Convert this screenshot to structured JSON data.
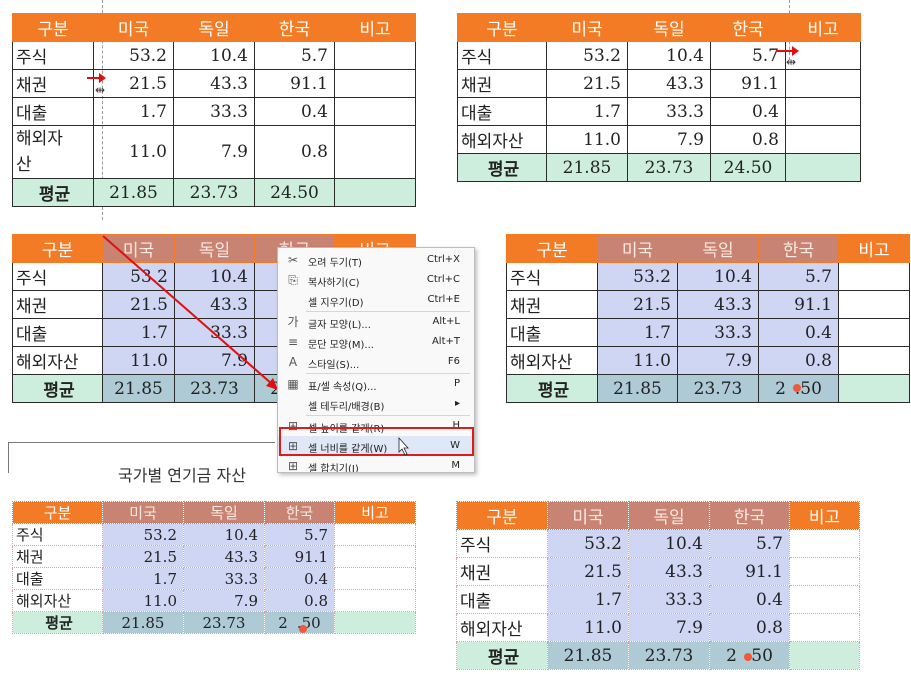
{
  "table": {
    "headers": [
      "구분",
      "미국",
      "독일",
      "한국",
      "비고"
    ],
    "rows": [
      {
        "label": "주식",
        "values": [
          "53.2",
          "10.4",
          "5.7",
          ""
        ]
      },
      {
        "label": "채권",
        "values": [
          "21.5",
          "43.3",
          "91.1",
          ""
        ]
      },
      {
        "label": "대출",
        "values": [
          "1.7",
          "33.3",
          "0.4",
          ""
        ]
      },
      {
        "label": "해외자산",
        "values": [
          "11.0",
          "7.9",
          "0.8",
          ""
        ]
      }
    ],
    "avg": {
      "label": "평균",
      "values": [
        "21.85",
        "23.73",
        "24.50",
        ""
      ]
    },
    "avg_split": {
      "a": "2",
      "b": ".50"
    },
    "wrapped_label": {
      "line1": "해외자",
      "line2": "산"
    }
  },
  "menu": {
    "items": [
      {
        "icon": "scissors-icon",
        "glyph": "✂",
        "label": "오려 두기(T)",
        "shortcut": "Ctrl+X"
      },
      {
        "icon": "copy-icon",
        "glyph": "⎘",
        "label": "복사하기(C)",
        "shortcut": "Ctrl+C"
      },
      {
        "icon": "",
        "glyph": "",
        "label": "셀 지우기(D)",
        "shortcut": "Ctrl+E"
      },
      {
        "icon": "font-shape-icon",
        "glyph": "가",
        "label": "글자 모양(L)...",
        "shortcut": "Alt+L"
      },
      {
        "icon": "paragraph-shape-icon",
        "glyph": "≡",
        "label": "문단 모양(M)...",
        "shortcut": "Alt+T"
      },
      {
        "icon": "style-icon",
        "glyph": "A",
        "label": "스타일(S)...",
        "shortcut": "F6"
      },
      {
        "icon": "table-props-icon",
        "glyph": "▦",
        "label": "표/셀 속성(Q)...",
        "shortcut": "P"
      },
      {
        "icon": "",
        "glyph": "",
        "label": "셀 테두리/배경(B)",
        "shortcut": "▸"
      },
      {
        "icon": "equal-height-icon",
        "glyph": "⊞",
        "label": "셀 높이를 같게(R)",
        "shortcut": "H"
      },
      {
        "icon": "equal-width-icon",
        "glyph": "⊞",
        "label": "셀 너비를 같게(W)",
        "shortcut": "W"
      },
      {
        "icon": "merge-cells-icon",
        "glyph": "⊞",
        "label": "셀 합치기(J)",
        "shortcut": "M"
      }
    ]
  },
  "document": {
    "partial_text": "국가별 연기금 자산"
  },
  "colors": {
    "header": "#f47b25",
    "selected_header": "#c98372",
    "selected_cell": "#cfd6f4",
    "avg_row": "#cdeedd",
    "highlight": "#e01b1b"
  }
}
